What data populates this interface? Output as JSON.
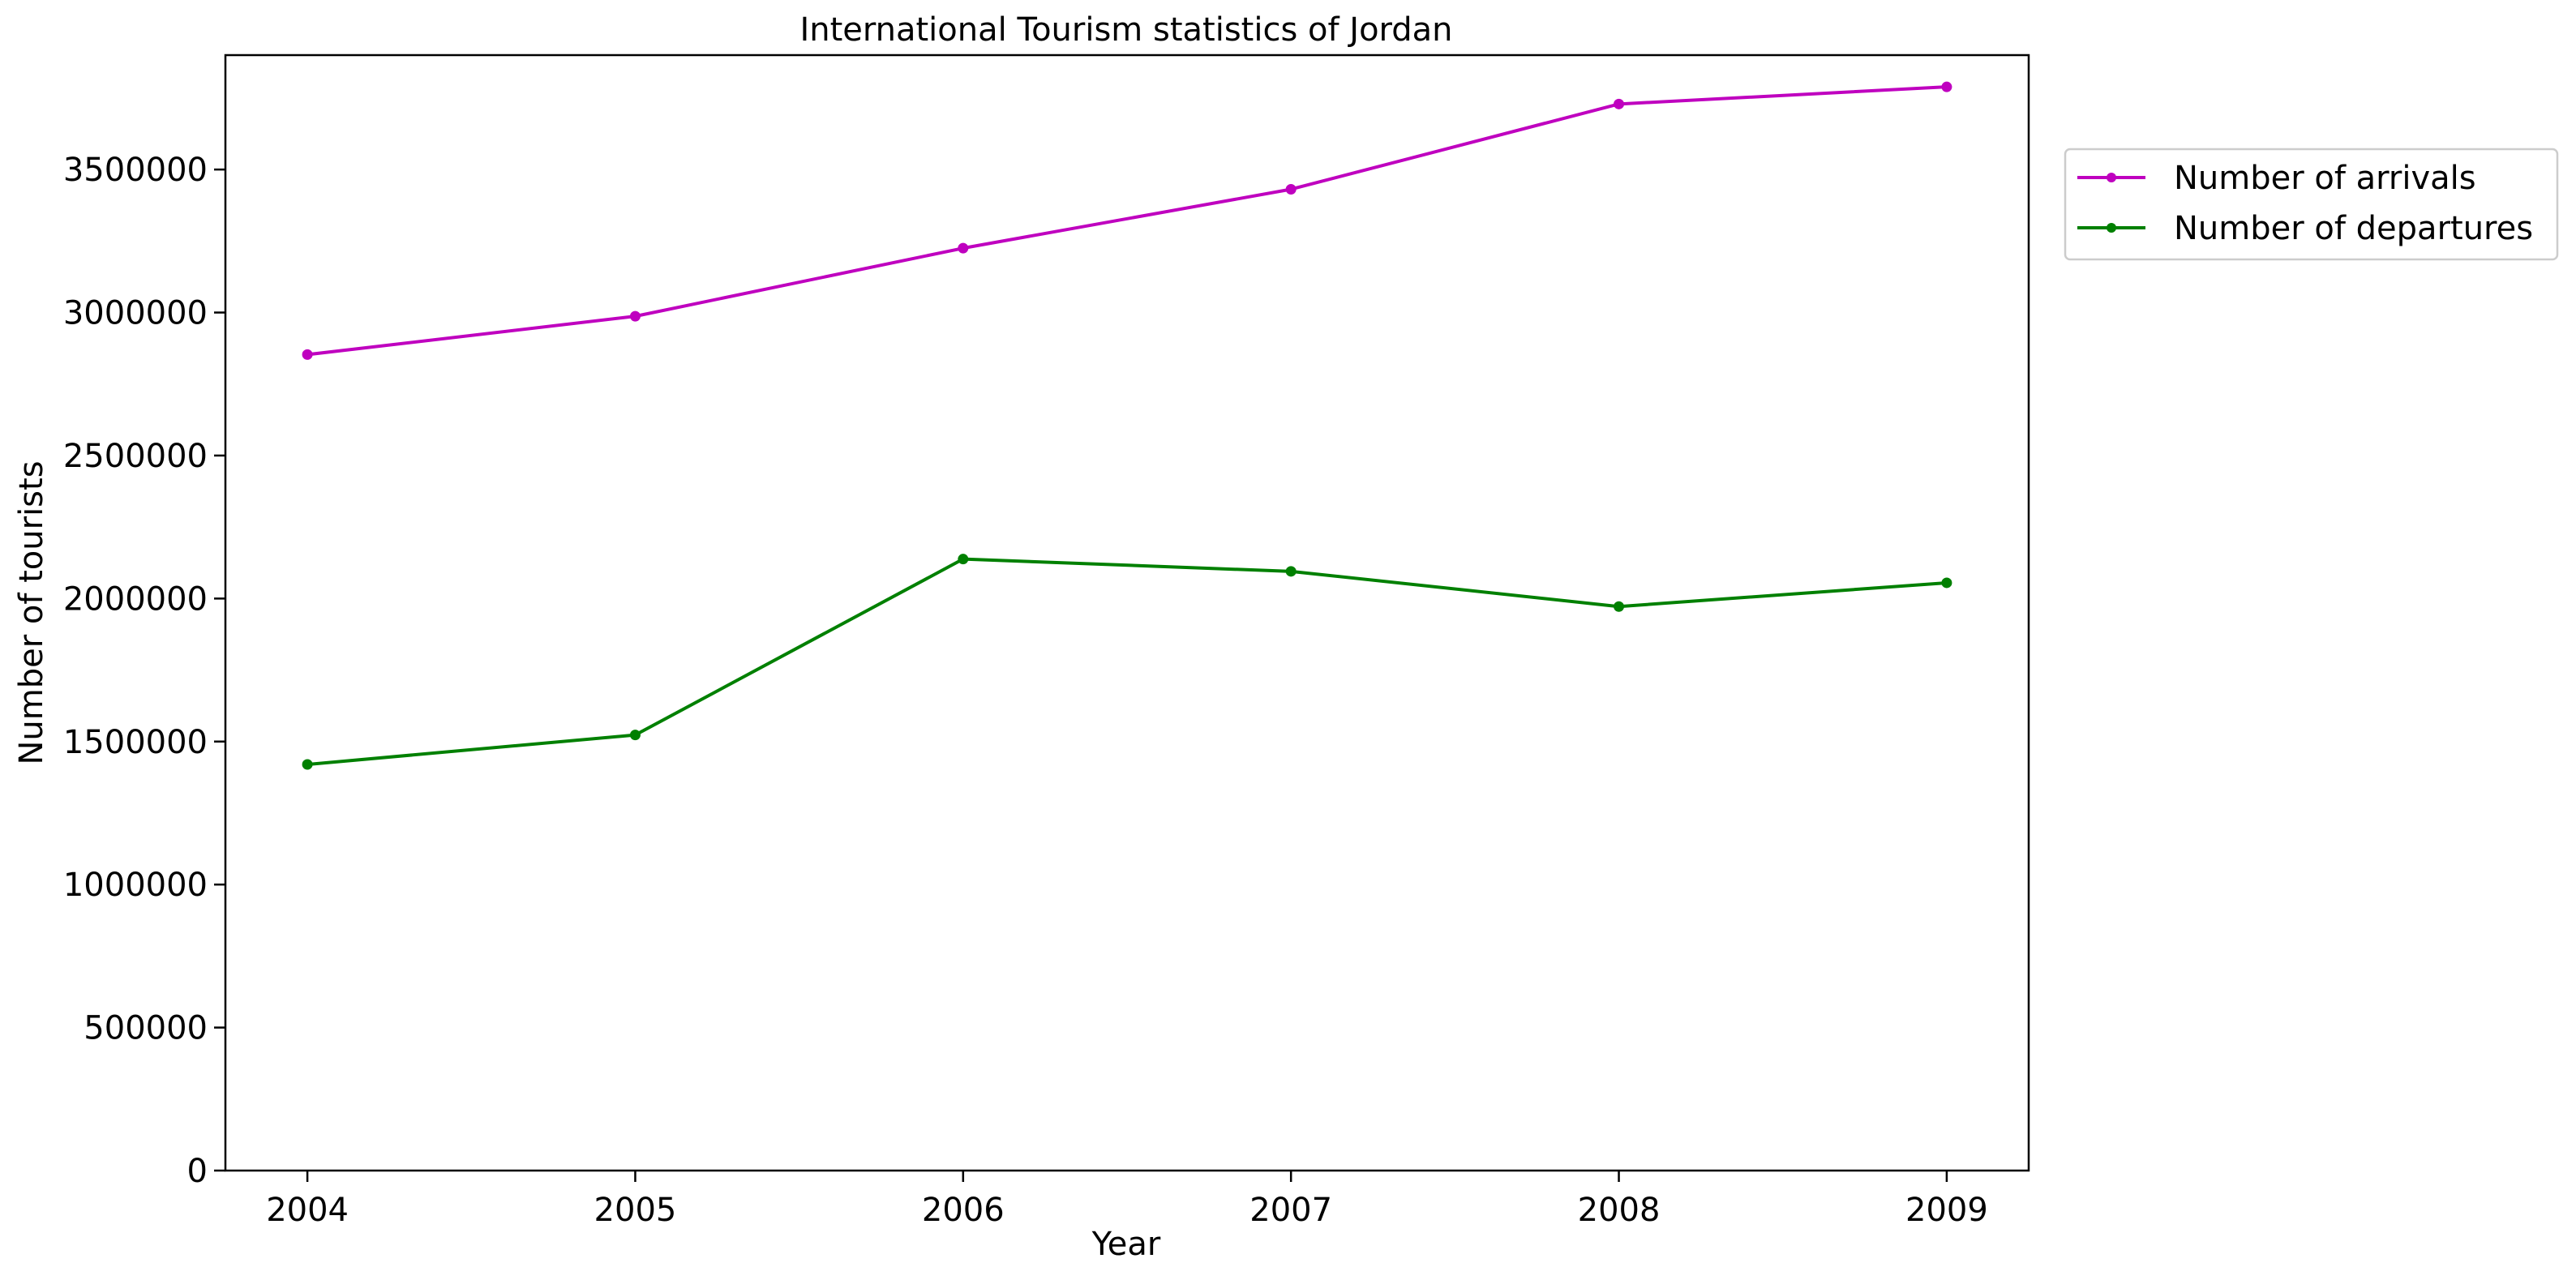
{
  "chart_data": {
    "type": "line",
    "title": "International Tourism statistics of Jordan",
    "xlabel": "Year",
    "ylabel": "Number of tourists",
    "x": [
      "2004",
      "2005",
      "2006",
      "2007",
      "2008",
      "2009"
    ],
    "xlim": [
      2003.75,
      2009.25
    ],
    "ylim": [
      0,
      3900000
    ],
    "yticks": [
      0,
      500000,
      1000000,
      1500000,
      2000000,
      2500000,
      3000000,
      3500000
    ],
    "ytick_labels": [
      "0",
      "500000",
      "1000000",
      "1500000",
      "2000000",
      "2500000",
      "3000000",
      "3500000"
    ],
    "grid": false,
    "legend_position": "outside-top-right",
    "series": [
      {
        "name": "Number of arrivals",
        "color": "#bf00bf",
        "marker": "circle",
        "values": [
          2853000,
          2987000,
          3225000,
          3431000,
          3729000,
          3789000
        ]
      },
      {
        "name": "Number of departures",
        "color": "#008000",
        "marker": "circle",
        "values": [
          1420000,
          1523000,
          2138000,
          2095000,
          1972000,
          2055000
        ]
      }
    ]
  }
}
